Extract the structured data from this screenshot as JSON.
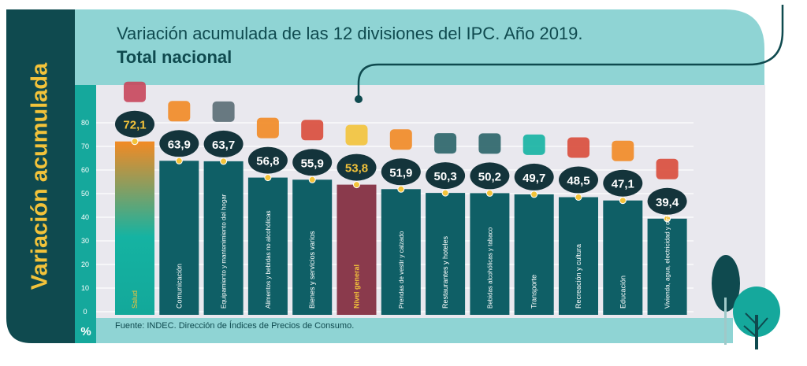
{
  "side_label": "Variación acumulada",
  "source": "Fuente: INDEC. Dirección de Índices de Precios de Consumo.",
  "colors": {
    "panel_dark": "#0f4a4f",
    "panel_teal": "#8fd4d4",
    "plot_bg": "#e9e8ee",
    "bar_teal": "#0f5f66",
    "bar_general": "#8a3a4c",
    "salud_top": "#f28a24",
    "salud_bottom": "#15b3a2",
    "label_yellow": "#f3c33a",
    "badge_dark": "#14343b"
  },
  "chart_data": {
    "type": "bar",
    "title": "Variación acumulada de las 12 divisiones del IPC. Año 2019.",
    "subtitle": "Total nacional",
    "ylabel": "%",
    "ylim": [
      0,
      80
    ],
    "yticks": [
      "0",
      "10",
      "20",
      "30",
      "40",
      "50",
      "60",
      "70",
      "80"
    ],
    "grid": true,
    "categories": [
      "Salud",
      "Comunicación",
      "Equipamiento y mantenimiento del hogar",
      "Alimentos y bebidas no alcohólicas",
      "Bienes y servicios varios",
      "Nivel general",
      "Prendas de vestir y calzado",
      "Restaurantes y hoteles",
      "Bebidas alcohólicas y tabaco",
      "Transporte",
      "Recreación y cultura",
      "Educación",
      "Vivienda, agua, electricidad y otros"
    ],
    "values": [
      72.1,
      63.9,
      63.7,
      56.8,
      55.9,
      53.8,
      51.9,
      50.3,
      50.2,
      49.7,
      48.5,
      47.1,
      39.4
    ],
    "value_labels": [
      "72,1",
      "63,9",
      "63,7",
      "56,8",
      "55,9",
      "53,8",
      "51,9",
      "50,3",
      "50,2",
      "49,7",
      "48,5",
      "47,1",
      "39,4"
    ],
    "icons": [
      "first-aid-kit-icon",
      "mobile-phone-icon",
      "washing-machine-icon",
      "roast-chicken-icon",
      "scissors-icon",
      "shopping-bag-icon",
      "t-shirt-icon",
      "tableware-icon",
      "bottle-icon",
      "bus-card-icon",
      "guitar-icon",
      "book-icon",
      "tools-bulb-icon"
    ],
    "highlight": "Nivel general"
  }
}
